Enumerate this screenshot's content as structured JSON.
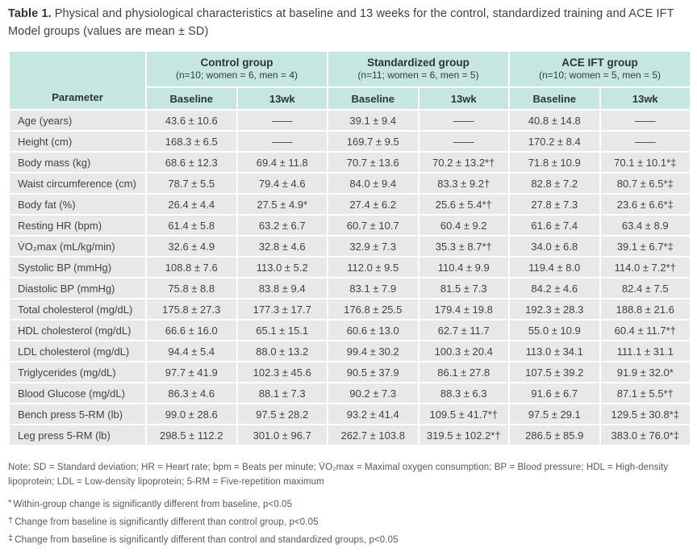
{
  "title": {
    "label": "Table 1.",
    "text": "Physical and physiological characteristics at baseline and 13 weeks for the control, standardized training and ACE IFT Model groups (values are mean ± SD)"
  },
  "table": {
    "parameter_header": "Parameter",
    "groups": [
      {
        "name": "Control group",
        "detail": "(n=10; women = 6, men = 4)"
      },
      {
        "name": "Standardized group",
        "detail": "(n=11; women = 6, men = 5)"
      },
      {
        "name": "ACE IFT group",
        "detail": "(n=10; women = 5, men = 5)"
      }
    ],
    "sub_headers": [
      "Baseline",
      "13wk",
      "Baseline",
      "13wk",
      "Baseline",
      "13wk"
    ],
    "rows": [
      {
        "parameter": "Age (years)",
        "values": [
          "43.6 ± 10.6",
          "——",
          "39.1 ± 9.4",
          "——",
          "40.8 ± 14.8",
          "——"
        ]
      },
      {
        "parameter": "Height (cm)",
        "values": [
          "168.3 ± 6.5",
          "——",
          "169.7 ± 9.5",
          "——",
          "170.2 ± 8.4",
          "——"
        ]
      },
      {
        "parameter": "Body mass (kg)",
        "values": [
          "68.6 ± 12.3",
          "69.4 ± 11.8",
          "70.7 ± 13.6",
          "70.2 ± 13.2*†",
          "71.8 ± 10.9",
          "70.1 ± 10.1*‡"
        ]
      },
      {
        "parameter": "Waist circumference (cm)",
        "values": [
          "78.7 ± 5.5",
          "79.4 ± 4.6",
          "84.0 ± 9.4",
          "83.3 ± 9.2†",
          "82.8 ± 7.2",
          "80.7 ± 6.5*‡"
        ]
      },
      {
        "parameter": "Body fat (%)",
        "values": [
          "26.4 ± 4.4",
          "27.5 ± 4.9*",
          "27.4 ± 6.2",
          "25.6 ± 5.4*†",
          "27.8 ± 7.3",
          "23.6 ± 6.6*‡"
        ]
      },
      {
        "parameter": "Resting HR (bpm)",
        "values": [
          "61.4 ± 5.8",
          "63.2 ± 6.7",
          "60.7 ± 10.7",
          "60.4 ± 9.2",
          "61.6 ± 7.4",
          "63.4 ± 8.9"
        ]
      },
      {
        "parameter": "V̇O₂max (mL/kg/min)",
        "values": [
          "32.6 ± 4.9",
          "32.8 ± 4.6",
          "32.9 ± 7.3",
          "35.3 ± 8.7*†",
          "34.0 ± 6.8",
          "39.1 ± 6.7*‡"
        ]
      },
      {
        "parameter": "Systolic BP (mmHg)",
        "values": [
          "108.8 ± 7.6",
          "113.0 ± 5.2",
          "112.0 ± 9.5",
          "110.4 ± 9.9",
          "119.4 ± 8.0",
          "114.0 ± 7.2*†"
        ]
      },
      {
        "parameter": "Diastolic BP (mmHg)",
        "values": [
          "75.8 ± 8.8",
          "83.8 ± 9.4",
          "83.1 ± 7.9",
          "81.5 ± 7.3",
          "84.2 ± 4.6",
          "82.4 ± 7.5"
        ]
      },
      {
        "parameter": "Total cholesterol (mg/dL)",
        "values": [
          "175.8 ± 27.3",
          "177.3 ± 17.7",
          "176.8 ± 25.5",
          "179.4 ± 19.8",
          "192.3 ± 28.3",
          "188.8 ± 21.6"
        ]
      },
      {
        "parameter": "HDL cholesterol (mg/dL)",
        "values": [
          "66.6 ± 16.0",
          "65.1 ± 15.1",
          "60.6 ± 13.0",
          "62.7 ± 11.7",
          "55.0 ± 10.9",
          "60.4 ± 11.7*†"
        ]
      },
      {
        "parameter": "LDL cholesterol (mg/dL)",
        "values": [
          "94.4 ± 5.4",
          "88.0 ± 13.2",
          "99.4 ± 30.2",
          "100.3 ± 20.4",
          "113.0 ± 34.1",
          "111.1 ± 31.1"
        ]
      },
      {
        "parameter": "Triglycerides (mg/dL)",
        "values": [
          "97.7 ± 41.9",
          "102.3 ± 45.6",
          "90.5 ± 37.9",
          "86.1 ± 27.8",
          "107.5 ± 39.2",
          "91.9 ± 32.0*"
        ]
      },
      {
        "parameter": "Blood Glucose (mg/dL)",
        "values": [
          "86.3 ± 4.6",
          "88.1 ± 7.3",
          "90.2 ± 7.3",
          "88.3 ± 6.3",
          "91.6 ± 6.7",
          "87.1 ± 5.5*†"
        ]
      },
      {
        "parameter": "Bench press 5-RM (lb)",
        "values": [
          "99.0 ± 28.6",
          "97.5 ± 28.2",
          "93.2 ± 41.4",
          "109.5 ± 41.7*†",
          "97.5 ± 29.1",
          "129.5 ± 30.8*‡"
        ]
      },
      {
        "parameter": "Leg press 5-RM (lb)",
        "values": [
          "298.5 ± 112.2",
          "301.0 ± 96.7",
          "262.7 ± 103.8",
          "319.5 ± 102.2*†",
          "286.5 ± 85.9",
          "383.0 ± 76.0*‡"
        ]
      }
    ]
  },
  "footnotes": {
    "note": "Note: SD = Standard deviation; HR = Heart rate; bpm = Beats per minute; V̇O₂max = Maximal oxygen consumption; BP = Blood pressure; HDL = High-density lipoprotein; LDL = Low-density lipoprotein; 5-RM = Five-repetition maximum",
    "items": [
      {
        "marker": "*",
        "text": "Within-group change is significantly different from baseline, p<0.05"
      },
      {
        "marker": "†",
        "text": "Change from baseline is significantly different than control group, p<0.05"
      },
      {
        "marker": "‡",
        "text": "Change from baseline is significantly different than control and standardized groups, p<0.05"
      }
    ]
  },
  "colors": {
    "header_bg": "#c6e7df",
    "row_bg": "#e8e8e9",
    "separator": "#ffffff",
    "title_text": "#2f343b",
    "body_text": "#3e4246",
    "footnote_text": "#54575d"
  }
}
